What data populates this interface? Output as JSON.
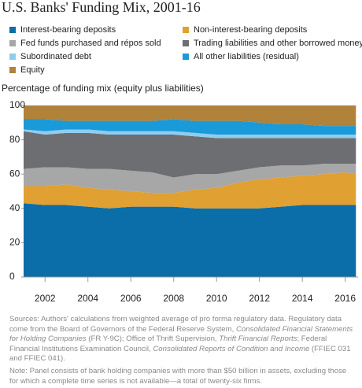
{
  "chart_data": {
    "type": "stacked-area",
    "title": "U.S. Banks' Funding Mix, 2001-16",
    "y_label": "Percentage of funding mix (equity plus liabilities)",
    "x": [
      2001,
      2002,
      2003,
      2004,
      2005,
      2006,
      2007,
      2008,
      2009,
      2010,
      2011,
      2012,
      2013,
      2014,
      2015,
      2016,
      2016.5
    ],
    "xlim": [
      2001,
      2016.6
    ],
    "xticks": [
      2002,
      2004,
      2006,
      2008,
      2010,
      2012,
      2014,
      2016
    ],
    "ylim": [
      0,
      100
    ],
    "yticks": [
      0,
      20,
      40,
      60,
      80,
      100
    ],
    "series": [
      {
        "name": "Interest-bearing deposits",
        "color": "#0b6ea8",
        "values": [
          43,
          42,
          42,
          41,
          40,
          41,
          41,
          41,
          40,
          40,
          40,
          40,
          41,
          42,
          42,
          42,
          42
        ]
      },
      {
        "name": "Non-interest-bearing deposits",
        "color": "#e0a032",
        "values": [
          10,
          11,
          12,
          11,
          11,
          9,
          8,
          8,
          11,
          12,
          15,
          17,
          17,
          17,
          18,
          19,
          18
        ]
      },
      {
        "name": "Fed funds purchased and répos sold",
        "color": "#a7a7a7",
        "values": [
          10,
          11,
          10,
          11,
          12,
          12,
          12,
          9,
          9,
          8,
          7,
          7,
          7,
          6,
          6,
          5,
          6
        ]
      },
      {
        "name": "Trading liabilities and other borrowed money",
        "color": "#6d6e71",
        "values": [
          22,
          19,
          20,
          21,
          20,
          21,
          22,
          25,
          22,
          21,
          19,
          17,
          16,
          16,
          15,
          15,
          15
        ]
      },
      {
        "name": "Subordinated debt",
        "color": "#8fcdf0",
        "values": [
          1,
          2,
          2,
          2,
          2,
          2,
          2,
          2,
          2,
          2,
          2,
          2,
          2,
          2,
          2,
          2,
          2
        ]
      },
      {
        "name": "All other liabilities (residual)",
        "color": "#1a9ad8",
        "values": [
          6,
          7,
          5,
          5,
          6,
          6,
          6,
          7,
          7,
          8,
          8,
          7,
          6,
          6,
          5,
          5,
          5
        ]
      },
      {
        "name": "Equity",
        "color": "#b0823a",
        "values": [
          8,
          8,
          9,
          9,
          9,
          9,
          9,
          8,
          9,
          9,
          9,
          10,
          11,
          11,
          12,
          12,
          12
        ]
      }
    ],
    "source": [
      "Sources: Authors' calculations from weighted average of pro forma regulatory data. Regulatory data come from the Board of Governors of the Federal Reserve System, ",
      "Consolidated Financial Statements for Holding Companies",
      " (FR Y-9C); Office of Thrift Supervision, ",
      "Thrift Financial Reports",
      "; Federal Financial Institutions Examination Council, ",
      "Consolidated Reports of Condition and Income",
      " (FFIEC 031 and FFIEC 041)."
    ],
    "note": "Note: Panel consists of bank holding companies with more than $50 billion in assets, excluding those for which a complete time series is not available—a total of twenty-six firms."
  }
}
